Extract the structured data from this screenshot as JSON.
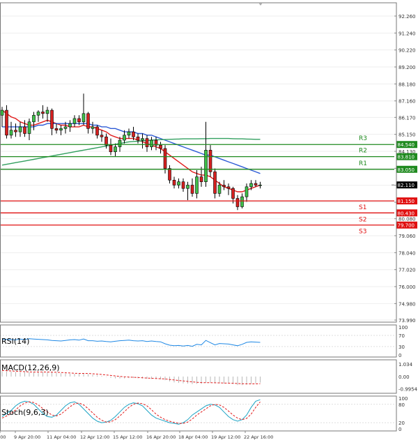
{
  "chart_data": {
    "type": "candlestick",
    "price_axis": {
      "ylim": [
        73.99,
        92.26
      ],
      "ticks": [
        "92.260",
        "91.240",
        "90.220",
        "89.200",
        "88.180",
        "87.160",
        "86.170",
        "85.150",
        "84.130",
        "83.110",
        "82.090",
        "81.070",
        "80.080",
        "79.060",
        "78.040",
        "77.020",
        "76.000",
        "74.980",
        "73.990"
      ]
    },
    "time_axis": {
      "labels": [
        ":00",
        "9 Apr 20:00",
        "11 Apr 04:00",
        "12 Apr 12:00",
        "15 Apr 12:00",
        "16 Apr 20:00",
        "18 Apr 04:00",
        "19 Apr 12:00",
        "22 Apr 16:00"
      ]
    },
    "last_price": "82.110",
    "candles": [
      {
        "o": 86.3,
        "h": 86.8,
        "l": 85.6,
        "c": 86.6
      },
      {
        "o": 86.6,
        "h": 86.9,
        "l": 84.9,
        "c": 85.1
      },
      {
        "o": 85.1,
        "h": 85.9,
        "l": 84.9,
        "c": 85.4
      },
      {
        "o": 85.4,
        "h": 85.8,
        "l": 85.0,
        "c": 85.3
      },
      {
        "o": 85.3,
        "h": 85.9,
        "l": 85.0,
        "c": 85.6
      },
      {
        "o": 85.6,
        "h": 86.0,
        "l": 85.0,
        "c": 85.2
      },
      {
        "o": 85.2,
        "h": 86.1,
        "l": 84.8,
        "c": 85.9
      },
      {
        "o": 85.9,
        "h": 86.5,
        "l": 85.4,
        "c": 86.3
      },
      {
        "o": 86.3,
        "h": 86.6,
        "l": 85.9,
        "c": 86.5
      },
      {
        "o": 86.5,
        "h": 86.9,
        "l": 86.1,
        "c": 86.4
      },
      {
        "o": 86.4,
        "h": 86.8,
        "l": 85.9,
        "c": 86.6
      },
      {
        "o": 86.6,
        "h": 86.7,
        "l": 85.1,
        "c": 85.5
      },
      {
        "o": 85.5,
        "h": 85.8,
        "l": 85.2,
        "c": 85.4
      },
      {
        "o": 85.4,
        "h": 85.7,
        "l": 85.1,
        "c": 85.5
      },
      {
        "o": 85.5,
        "h": 85.9,
        "l": 85.2,
        "c": 85.6
      },
      {
        "o": 85.6,
        "h": 86.0,
        "l": 85.3,
        "c": 85.8
      },
      {
        "o": 85.8,
        "h": 86.3,
        "l": 85.6,
        "c": 86.1
      },
      {
        "o": 86.1,
        "h": 86.3,
        "l": 85.7,
        "c": 85.9
      },
      {
        "o": 85.9,
        "h": 87.6,
        "l": 85.7,
        "c": 86.4
      },
      {
        "o": 86.4,
        "h": 86.5,
        "l": 85.2,
        "c": 85.5
      },
      {
        "o": 85.5,
        "h": 85.9,
        "l": 85.2,
        "c": 85.6
      },
      {
        "o": 85.6,
        "h": 85.7,
        "l": 84.9,
        "c": 85.1
      },
      {
        "o": 85.1,
        "h": 85.4,
        "l": 84.7,
        "c": 85.0
      },
      {
        "o": 85.0,
        "h": 85.2,
        "l": 84.3,
        "c": 84.5
      },
      {
        "o": 84.5,
        "h": 84.9,
        "l": 83.9,
        "c": 84.1
      },
      {
        "o": 84.1,
        "h": 84.6,
        "l": 83.8,
        "c": 84.4
      },
      {
        "o": 84.4,
        "h": 85.0,
        "l": 84.1,
        "c": 84.8
      },
      {
        "o": 84.8,
        "h": 85.4,
        "l": 84.6,
        "c": 85.1
      },
      {
        "o": 85.1,
        "h": 85.5,
        "l": 84.9,
        "c": 85.3
      },
      {
        "o": 85.3,
        "h": 85.6,
        "l": 84.8,
        "c": 85.0
      },
      {
        "o": 85.0,
        "h": 85.2,
        "l": 84.6,
        "c": 84.8
      },
      {
        "o": 84.8,
        "h": 85.2,
        "l": 84.3,
        "c": 84.9
      },
      {
        "o": 84.9,
        "h": 85.1,
        "l": 84.1,
        "c": 84.4
      },
      {
        "o": 84.4,
        "h": 85.0,
        "l": 84.2,
        "c": 84.8
      },
      {
        "o": 84.8,
        "h": 85.0,
        "l": 84.2,
        "c": 84.5
      },
      {
        "o": 84.5,
        "h": 84.7,
        "l": 84.0,
        "c": 84.3
      },
      {
        "o": 84.3,
        "h": 84.5,
        "l": 82.8,
        "c": 83.1
      },
      {
        "o": 83.1,
        "h": 83.3,
        "l": 82.2,
        "c": 82.4
      },
      {
        "o": 82.4,
        "h": 82.6,
        "l": 81.9,
        "c": 82.1
      },
      {
        "o": 82.1,
        "h": 82.5,
        "l": 81.9,
        "c": 82.3
      },
      {
        "o": 82.3,
        "h": 82.5,
        "l": 81.7,
        "c": 81.9
      },
      {
        "o": 81.9,
        "h": 82.3,
        "l": 81.2,
        "c": 82.1
      },
      {
        "o": 82.1,
        "h": 82.5,
        "l": 81.4,
        "c": 81.6
      },
      {
        "o": 81.6,
        "h": 83.0,
        "l": 81.3,
        "c": 82.6
      },
      {
        "o": 82.6,
        "h": 83.2,
        "l": 82.0,
        "c": 82.3
      },
      {
        "o": 82.3,
        "h": 85.9,
        "l": 82.0,
        "c": 84.2
      },
      {
        "o": 84.2,
        "h": 84.5,
        "l": 82.6,
        "c": 82.9
      },
      {
        "o": 82.9,
        "h": 83.1,
        "l": 81.3,
        "c": 81.6
      },
      {
        "o": 81.6,
        "h": 82.3,
        "l": 81.4,
        "c": 82.1
      },
      {
        "o": 82.1,
        "h": 82.4,
        "l": 81.8,
        "c": 82.0
      },
      {
        "o": 82.0,
        "h": 82.2,
        "l": 81.5,
        "c": 81.9
      },
      {
        "o": 81.9,
        "h": 82.0,
        "l": 81.0,
        "c": 81.3
      },
      {
        "o": 81.3,
        "h": 81.5,
        "l": 80.6,
        "c": 80.8
      },
      {
        "o": 80.8,
        "h": 81.6,
        "l": 80.7,
        "c": 81.4
      },
      {
        "o": 81.4,
        "h": 82.2,
        "l": 81.1,
        "c": 82.0
      },
      {
        "o": 82.0,
        "h": 82.4,
        "l": 81.8,
        "c": 82.2
      },
      {
        "o": 82.2,
        "h": 82.4,
        "l": 82.0,
        "c": 82.1
      },
      {
        "o": 82.1,
        "h": 82.3,
        "l": 81.9,
        "c": 82.11
      }
    ],
    "moving_averages": [
      {
        "color": "#e21b1b",
        "points": [
          86.6,
          86.4,
          86.2,
          86.1,
          85.9,
          85.8,
          85.7,
          85.7,
          85.8,
          85.9,
          86.0,
          85.9,
          85.8,
          85.7,
          85.7,
          85.6,
          85.6,
          85.6,
          85.7,
          85.6,
          85.6,
          85.5,
          85.4,
          85.3,
          85.1,
          85.0,
          84.9,
          84.9,
          84.9,
          84.9,
          84.8,
          84.7,
          84.6,
          84.5,
          84.4,
          84.3,
          84.1,
          83.9,
          83.7,
          83.5,
          83.3,
          83.1,
          82.9,
          82.8,
          82.7,
          82.7,
          82.6,
          82.4,
          82.2,
          82.0,
          81.9,
          81.8,
          81.7,
          81.7,
          81.8,
          81.9,
          82.0,
          82.1
        ]
      },
      {
        "color": "#2d5bd6",
        "points": [
          85.6,
          85.6,
          85.6,
          85.6,
          85.6,
          85.6,
          85.6,
          85.6,
          85.7,
          85.7,
          85.8,
          85.8,
          85.8,
          85.8,
          85.8,
          85.8,
          85.8,
          85.8,
          85.8,
          85.8,
          85.7,
          85.7,
          85.6,
          85.6,
          85.5,
          85.5,
          85.4,
          85.3,
          85.3,
          85.3,
          85.2,
          85.2,
          85.1,
          85.1,
          85.0,
          84.9,
          84.8,
          84.7,
          84.6,
          84.5,
          84.4,
          84.3,
          84.2,
          84.1,
          84.0,
          83.9,
          83.9,
          83.8,
          83.7,
          83.6,
          83.5,
          83.4,
          83.3,
          83.2,
          83.1,
          83.0,
          82.9,
          82.8
        ]
      },
      {
        "color": "#33a060",
        "points": [
          83.3,
          83.35,
          83.4,
          83.45,
          83.5,
          83.55,
          83.6,
          83.65,
          83.7,
          83.75,
          83.8,
          83.85,
          83.9,
          83.95,
          84.0,
          84.05,
          84.1,
          84.15,
          84.2,
          84.25,
          84.3,
          84.35,
          84.4,
          84.45,
          84.5,
          84.55,
          84.6,
          84.65,
          84.7,
          84.72,
          84.74,
          84.76,
          84.78,
          84.8,
          84.82,
          84.83,
          84.84,
          84.85,
          84.86,
          84.87,
          84.88,
          84.88,
          84.88,
          84.88,
          84.89,
          84.89,
          84.9,
          84.9,
          84.9,
          84.9,
          84.9,
          84.89,
          84.88,
          84.88,
          84.87,
          84.86,
          84.85,
          84.85
        ]
      }
    ],
    "levels": [
      {
        "name": "R3",
        "value": 84.54,
        "label": "84.540",
        "color": "#1f8a1f"
      },
      {
        "name": "R2",
        "value": 83.81,
        "label": "83.810",
        "color": "#1f8a1f"
      },
      {
        "name": "R1",
        "value": 83.05,
        "label": "83.050",
        "color": "#1f8a1f"
      },
      {
        "name": "S1",
        "value": 81.15,
        "label": "81.150",
        "color": "#e01010"
      },
      {
        "name": "S2",
        "value": 80.43,
        "label": "80.430",
        "color": "#e01010"
      },
      {
        "name": "S3",
        "value": 79.7,
        "label": "79.700",
        "color": "#e01010"
      }
    ],
    "rsi": {
      "label": "RSI(14)",
      "ticks": [
        "100",
        "70",
        "30",
        "0"
      ],
      "range": [
        0,
        100
      ],
      "values": [
        55,
        56,
        55,
        54,
        57,
        55,
        58,
        57,
        56,
        55,
        54,
        52,
        51,
        50,
        52,
        54,
        55,
        53,
        57,
        51,
        51,
        49,
        50,
        48,
        47,
        49,
        51,
        52,
        53,
        51,
        50,
        51,
        48,
        50,
        48,
        47,
        40,
        35,
        33,
        34,
        32,
        34,
        31,
        38,
        36,
        52,
        44,
        36,
        41,
        40,
        39,
        36,
        33,
        38,
        45,
        47,
        46,
        45
      ]
    },
    "macd": {
      "label": "MACD(12,26,9)",
      "ticks": [
        "1.034",
        "0.00",
        "-0.9954"
      ],
      "range": [
        -1.2,
        1.2
      ],
      "histogram": [
        0.45,
        0.42,
        0.4,
        0.38,
        0.36,
        0.35,
        0.34,
        0.35,
        0.37,
        0.38,
        0.38,
        0.34,
        0.3,
        0.27,
        0.25,
        0.23,
        0.23,
        0.22,
        0.26,
        0.2,
        0.15,
        0.1,
        0.05,
        -0.02,
        -0.1,
        -0.15,
        -0.16,
        -0.15,
        -0.13,
        -0.12,
        -0.14,
        -0.15,
        -0.18,
        -0.19,
        -0.2,
        -0.22,
        -0.3,
        -0.4,
        -0.48,
        -0.52,
        -0.56,
        -0.58,
        -0.62,
        -0.6,
        -0.6,
        -0.5,
        -0.48,
        -0.55,
        -0.56,
        -0.57,
        -0.58,
        -0.62,
        -0.7,
        -0.7,
        -0.65,
        -0.6,
        -0.55,
        -0.5
      ],
      "signal": [
        0.5,
        0.48,
        0.46,
        0.44,
        0.42,
        0.4,
        0.38,
        0.37,
        0.37,
        0.37,
        0.37,
        0.36,
        0.35,
        0.33,
        0.31,
        0.29,
        0.27,
        0.26,
        0.26,
        0.25,
        0.23,
        0.2,
        0.17,
        0.13,
        0.09,
        0.05,
        0.01,
        -0.02,
        -0.04,
        -0.06,
        -0.08,
        -0.1,
        -0.12,
        -0.14,
        -0.16,
        -0.18,
        -0.2,
        -0.24,
        -0.28,
        -0.32,
        -0.36,
        -0.4,
        -0.44,
        -0.47,
        -0.49,
        -0.5,
        -0.5,
        -0.51,
        -0.52,
        -0.53,
        -0.54,
        -0.55,
        -0.57,
        -0.59,
        -0.6,
        -0.6,
        -0.6,
        -0.59
      ]
    },
    "stochastic": {
      "label": "Stoch(9,6,3)",
      "ticks": [
        "100",
        "80",
        "20",
        "0"
      ],
      "range": [
        0,
        100
      ],
      "k": [
        40,
        50,
        60,
        75,
        85,
        90,
        88,
        80,
        65,
        50,
        40,
        38,
        45,
        60,
        75,
        85,
        88,
        80,
        65,
        50,
        35,
        25,
        20,
        22,
        28,
        40,
        55,
        70,
        80,
        85,
        82,
        75,
        60,
        45,
        35,
        30,
        25,
        20,
        18,
        15,
        20,
        30,
        45,
        55,
        65,
        75,
        80,
        78,
        70,
        55,
        40,
        30,
        25,
        30,
        45,
        70,
        90,
        95
      ],
      "d": [
        35,
        42,
        50,
        62,
        75,
        84,
        88,
        86,
        78,
        66,
        55,
        45,
        42,
        48,
        60,
        72,
        82,
        84,
        78,
        66,
        52,
        38,
        28,
        22,
        23,
        30,
        42,
        56,
        70,
        80,
        84,
        82,
        75,
        62,
        48,
        38,
        30,
        25,
        21,
        18,
        18,
        22,
        32,
        45,
        55,
        65,
        75,
        80,
        78,
        70,
        58,
        45,
        35,
        30,
        34,
        48,
        70,
        88
      ]
    }
  }
}
